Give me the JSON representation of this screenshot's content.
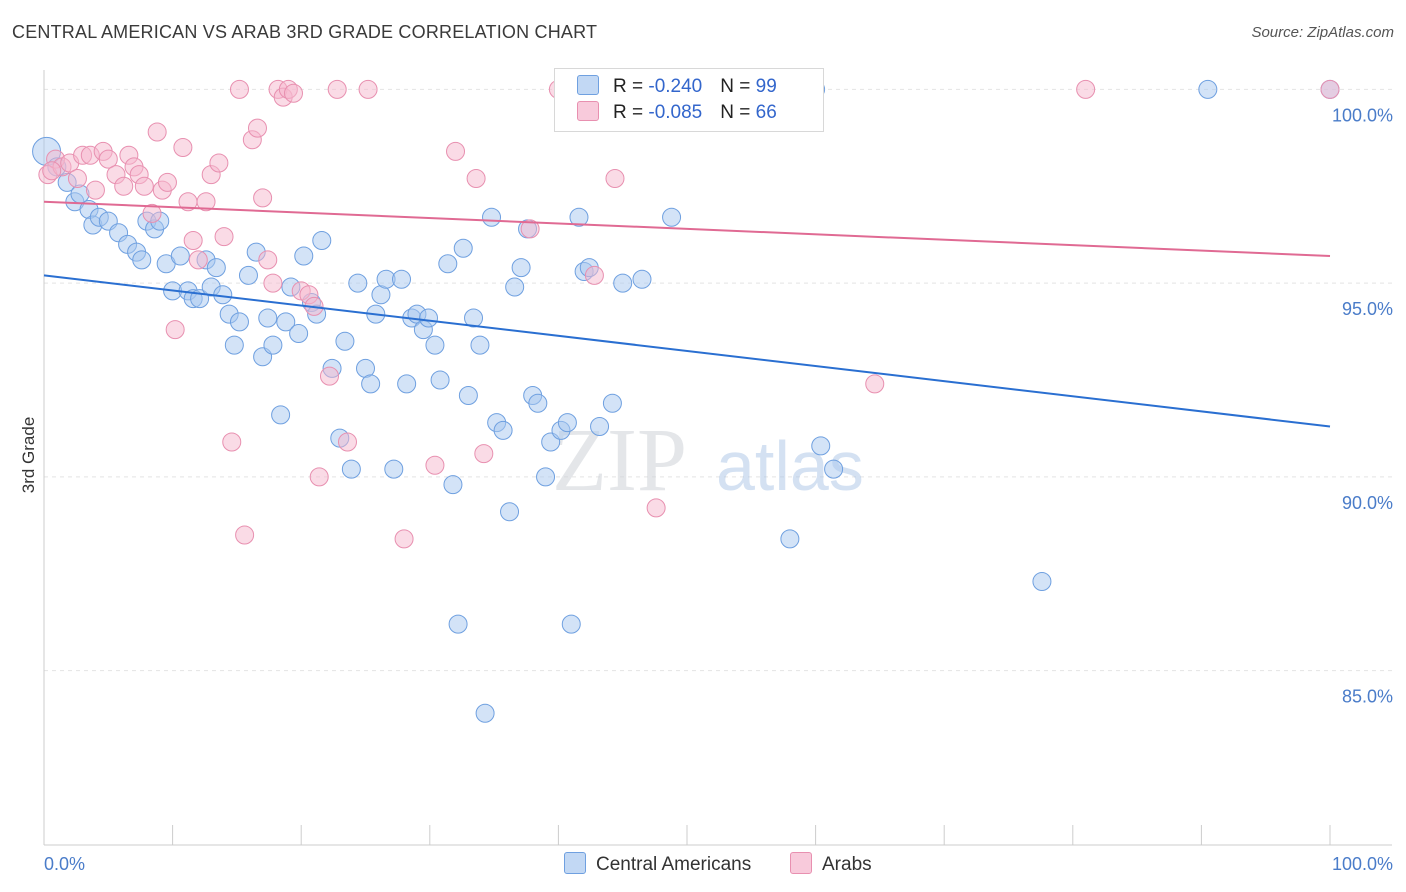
{
  "title": "CENTRAL AMERICAN VS ARAB 3RD GRADE CORRELATION CHART",
  "source": "Source: ZipAtlas.com",
  "watermark": {
    "zip": "ZIP",
    "atlas": "atlas"
  },
  "legend": [
    {
      "r_label": "R = ",
      "r_value": "-0.240",
      "n_label": "N = ",
      "n_value": "99",
      "color": "#a8c8f0"
    },
    {
      "r_label": "R = ",
      "r_value": "-0.085",
      "n_label": "N = ",
      "n_value": "66",
      "color": "#f5b8cd"
    }
  ],
  "bottom_legend": [
    {
      "label": "Central Americans",
      "color": "#a8c8f0"
    },
    {
      "label": "Arabs",
      "color": "#f5b8cd"
    }
  ],
  "chart_data": {
    "type": "scatter",
    "title": "CENTRAL AMERICAN VS ARAB 3RD GRADE CORRELATION CHART",
    "xlabel": "",
    "ylabel": "3rd Grade",
    "xlim": [
      0,
      100
    ],
    "ylim": [
      80.5,
      100.5
    ],
    "x_tick_labels": [
      "0.0%",
      "100.0%"
    ],
    "y_ticks": [
      100,
      95,
      90,
      85
    ],
    "y_tick_labels": [
      "100.0%",
      "95.0%",
      "90.0%",
      "85.0%"
    ],
    "grid": true,
    "series": [
      {
        "name": "Central Americans",
        "color": "#6fa0e0",
        "fill": "#a8c8f0",
        "trend": {
          "x": [
            0,
            100
          ],
          "y": [
            95.2,
            91.3
          ],
          "color": "#2a6fd1"
        },
        "points": [
          [
            0.2,
            98.4
          ],
          [
            1.0,
            98.0
          ],
          [
            1.8,
            97.6
          ],
          [
            2.4,
            97.1
          ],
          [
            3.5,
            96.9
          ],
          [
            2.8,
            97.3
          ],
          [
            3.8,
            96.5
          ],
          [
            4.3,
            96.7
          ],
          [
            5.0,
            96.6
          ],
          [
            5.8,
            96.3
          ],
          [
            6.5,
            96.0
          ],
          [
            7.2,
            95.8
          ],
          [
            7.6,
            95.6
          ],
          [
            8.0,
            96.6
          ],
          [
            8.6,
            96.4
          ],
          [
            9.0,
            96.6
          ],
          [
            9.5,
            95.5
          ],
          [
            10.0,
            94.8
          ],
          [
            10.6,
            95.7
          ],
          [
            11.2,
            94.8
          ],
          [
            11.6,
            94.6
          ],
          [
            12.1,
            94.6
          ],
          [
            12.6,
            95.6
          ],
          [
            13.0,
            94.9
          ],
          [
            13.4,
            95.4
          ],
          [
            13.9,
            94.7
          ],
          [
            14.4,
            94.2
          ],
          [
            14.8,
            93.4
          ],
          [
            15.2,
            94.0
          ],
          [
            15.9,
            95.2
          ],
          [
            16.5,
            95.8
          ],
          [
            17.0,
            93.1
          ],
          [
            17.4,
            94.1
          ],
          [
            17.8,
            93.4
          ],
          [
            18.4,
            91.6
          ],
          [
            18.8,
            94.0
          ],
          [
            19.2,
            94.9
          ],
          [
            19.8,
            93.7
          ],
          [
            20.2,
            95.7
          ],
          [
            20.8,
            94.5
          ],
          [
            21.2,
            94.2
          ],
          [
            21.6,
            96.1
          ],
          [
            22.4,
            92.8
          ],
          [
            23.0,
            91.0
          ],
          [
            23.4,
            93.5
          ],
          [
            23.9,
            90.2
          ],
          [
            24.4,
            95.0
          ],
          [
            25.0,
            92.8
          ],
          [
            25.4,
            92.4
          ],
          [
            25.8,
            94.2
          ],
          [
            26.2,
            94.7
          ],
          [
            26.6,
            95.1
          ],
          [
            27.2,
            90.2
          ],
          [
            27.8,
            95.1
          ],
          [
            28.2,
            92.4
          ],
          [
            28.6,
            94.1
          ],
          [
            29.0,
            94.2
          ],
          [
            29.5,
            93.8
          ],
          [
            29.9,
            94.1
          ],
          [
            30.4,
            93.4
          ],
          [
            30.8,
            92.5
          ],
          [
            31.4,
            95.5
          ],
          [
            31.8,
            89.8
          ],
          [
            32.2,
            86.2
          ],
          [
            32.6,
            95.9
          ],
          [
            33.0,
            92.1
          ],
          [
            33.4,
            94.1
          ],
          [
            33.9,
            93.4
          ],
          [
            34.3,
            83.9
          ],
          [
            34.8,
            96.7
          ],
          [
            35.2,
            91.4
          ],
          [
            35.7,
            91.2
          ],
          [
            36.2,
            89.1
          ],
          [
            36.6,
            94.9
          ],
          [
            37.1,
            95.4
          ],
          [
            37.6,
            96.4
          ],
          [
            38.0,
            92.1
          ],
          [
            38.4,
            91.9
          ],
          [
            39.0,
            90.0
          ],
          [
            39.4,
            90.9
          ],
          [
            40.2,
            91.2
          ],
          [
            40.7,
            91.4
          ],
          [
            41.0,
            86.2
          ],
          [
            41.6,
            96.7
          ],
          [
            42.0,
            95.3
          ],
          [
            42.4,
            95.4
          ],
          [
            43.2,
            91.3
          ],
          [
            44.2,
            91.9
          ],
          [
            45.0,
            95.0
          ],
          [
            46.5,
            95.1
          ],
          [
            48.8,
            96.7
          ],
          [
            51.0,
            100.0
          ],
          [
            58.0,
            88.4
          ],
          [
            60.0,
            100.0
          ],
          [
            60.4,
            90.8
          ],
          [
            61.4,
            90.2
          ],
          [
            77.6,
            87.3
          ],
          [
            90.5,
            100.0
          ],
          [
            100.0,
            100.0
          ]
        ]
      },
      {
        "name": "Arabs",
        "color": "#e890b0",
        "fill": "#f5b8cd",
        "trend": {
          "x": [
            0,
            100
          ],
          "y": [
            97.1,
            95.7
          ],
          "color": "#e06a93"
        },
        "points": [
          [
            0.3,
            97.8
          ],
          [
            0.9,
            98.2
          ],
          [
            1.4,
            98.0
          ],
          [
            2.0,
            98.1
          ],
          [
            2.6,
            97.7
          ],
          [
            3.0,
            98.3
          ],
          [
            3.6,
            98.3
          ],
          [
            4.0,
            97.4
          ],
          [
            4.6,
            98.4
          ],
          [
            5.0,
            98.2
          ],
          [
            5.6,
            97.8
          ],
          [
            6.2,
            97.5
          ],
          [
            6.6,
            98.3
          ],
          [
            7.0,
            98.0
          ],
          [
            7.4,
            97.8
          ],
          [
            7.8,
            97.5
          ],
          [
            8.4,
            96.8
          ],
          [
            8.8,
            98.9
          ],
          [
            9.2,
            97.4
          ],
          [
            9.6,
            97.6
          ],
          [
            10.2,
            93.8
          ],
          [
            10.8,
            98.5
          ],
          [
            11.2,
            97.1
          ],
          [
            11.6,
            96.1
          ],
          [
            12.0,
            95.6
          ],
          [
            12.6,
            97.1
          ],
          [
            13.0,
            97.8
          ],
          [
            13.6,
            98.1
          ],
          [
            14.0,
            96.2
          ],
          [
            14.6,
            90.9
          ],
          [
            15.2,
            100.0
          ],
          [
            15.6,
            88.5
          ],
          [
            16.2,
            98.7
          ],
          [
            16.6,
            99.0
          ],
          [
            17.0,
            97.2
          ],
          [
            17.4,
            95.6
          ],
          [
            17.8,
            95.0
          ],
          [
            18.2,
            100.0
          ],
          [
            18.6,
            99.8
          ],
          [
            19.0,
            100.0
          ],
          [
            19.4,
            99.9
          ],
          [
            20.0,
            94.8
          ],
          [
            20.6,
            94.7
          ],
          [
            21.0,
            94.4
          ],
          [
            21.4,
            90.0
          ],
          [
            22.2,
            92.6
          ],
          [
            22.8,
            100.0
          ],
          [
            23.6,
            90.9
          ],
          [
            25.2,
            100.0
          ],
          [
            28.0,
            88.4
          ],
          [
            30.4,
            90.3
          ],
          [
            32.0,
            98.4
          ],
          [
            33.6,
            97.7
          ],
          [
            34.2,
            90.6
          ],
          [
            37.8,
            96.4
          ],
          [
            40.0,
            100.0
          ],
          [
            42.8,
            95.2
          ],
          [
            44.4,
            97.7
          ],
          [
            47.6,
            89.2
          ],
          [
            50.4,
            100.0
          ],
          [
            57.0,
            100.0
          ],
          [
            58.4,
            100.0
          ],
          [
            64.6,
            92.4
          ],
          [
            81.0,
            100.0
          ],
          [
            100.0,
            100.0
          ],
          [
            0.6,
            97.9
          ]
        ]
      }
    ]
  }
}
